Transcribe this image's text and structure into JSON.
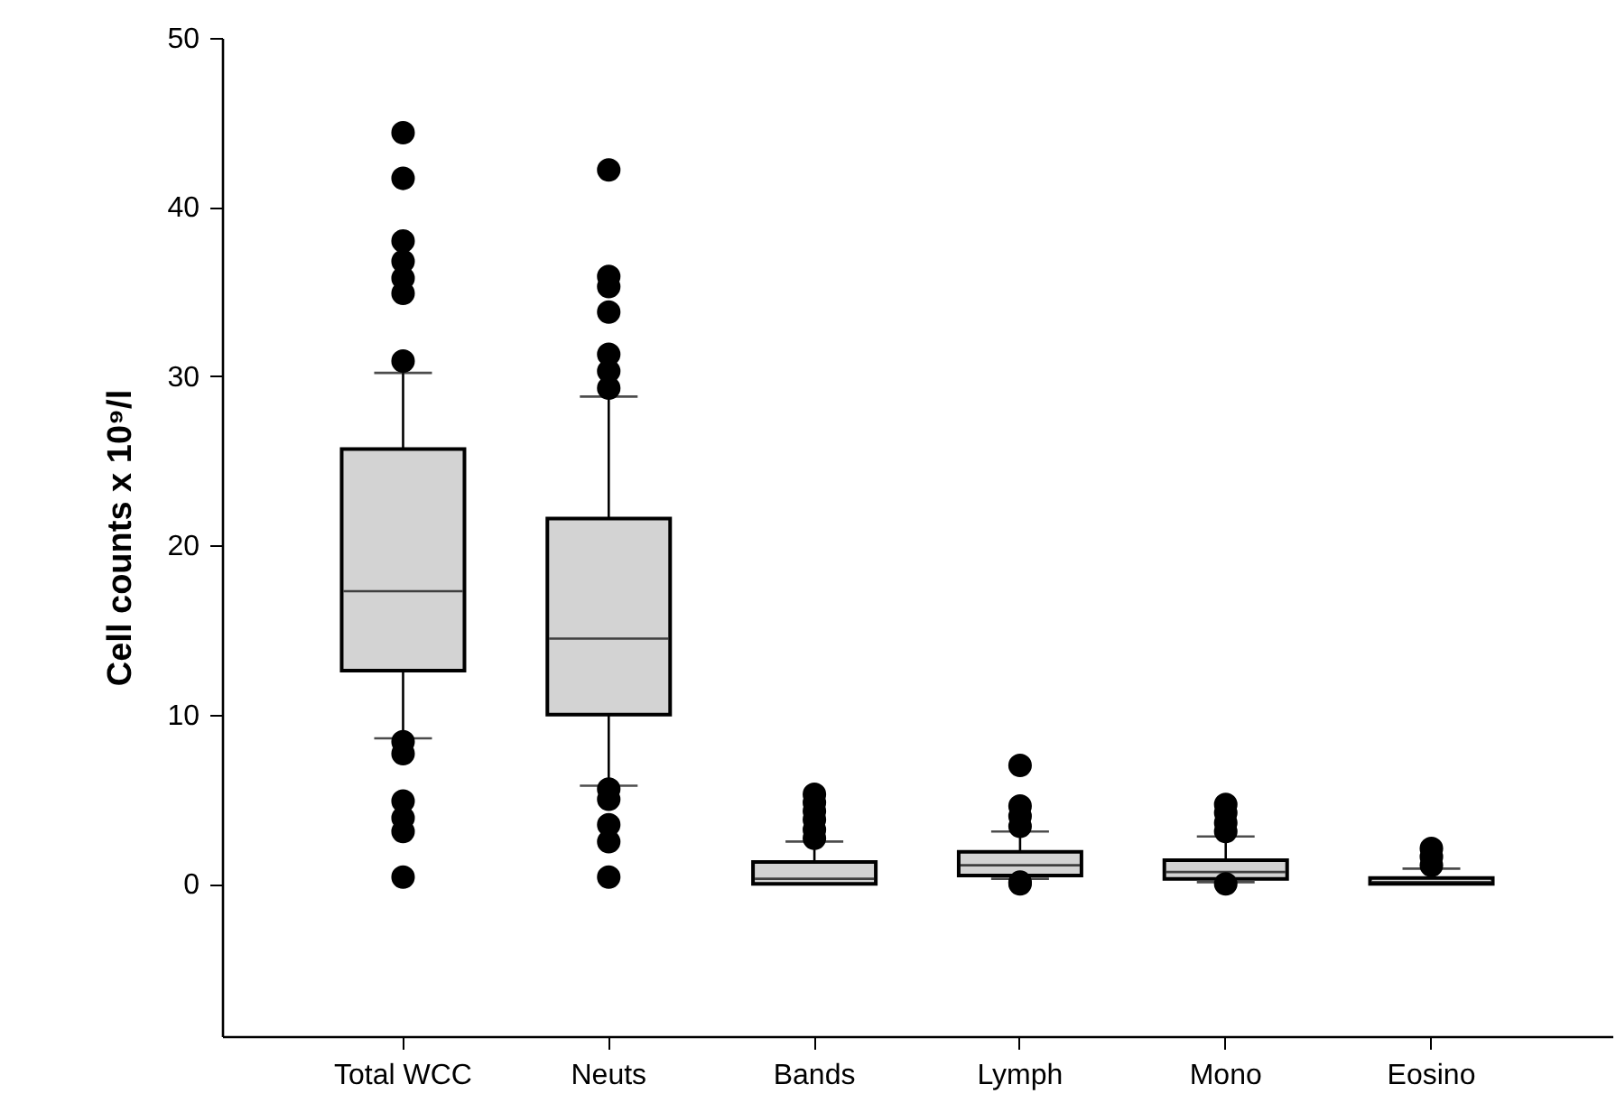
{
  "chart_data": {
    "type": "box",
    "ylabel": "Cell counts x 10⁹/l",
    "categories": [
      "Total WCC",
      "Neuts",
      "Bands",
      "Lymph",
      "Mono",
      "Eosino"
    ],
    "boxes": [
      {
        "low": 8.6,
        "q1": 12.6,
        "median": 17.3,
        "q3": 25.7,
        "high": 30.2,
        "outliers": [
          44.4,
          41.7,
          38.0,
          36.8,
          35.8,
          34.9,
          30.9,
          8.4,
          7.7,
          4.9,
          3.9,
          3.1,
          0.4
        ]
      },
      {
        "low": 5.8,
        "q1": 10.0,
        "median": 14.5,
        "q3": 21.6,
        "high": 28.8,
        "outliers": [
          42.2,
          35.9,
          35.3,
          33.8,
          31.3,
          30.3,
          29.3,
          5.6,
          5.0,
          3.5,
          2.5,
          0.4
        ]
      },
      {
        "low": 0,
        "q1": 0,
        "median": 0.3,
        "q3": 1.3,
        "high": 2.5,
        "outliers": [
          5.3,
          4.8,
          4.3,
          3.8,
          3.2,
          2.7
        ]
      },
      {
        "low": 0.3,
        "q1": 0.5,
        "median": 1.1,
        "q3": 1.9,
        "high": 3.1,
        "outliers": [
          7.0,
          4.6,
          4.0,
          3.4,
          0.1,
          0.0
        ]
      },
      {
        "low": 0.1,
        "q1": 0.3,
        "median": 0.7,
        "q3": 1.4,
        "high": 2.8,
        "outliers": [
          4.7,
          4.2,
          3.6,
          3.1,
          0.0
        ]
      },
      {
        "low": 0,
        "q1": 0,
        "median": 0.1,
        "q3": 0.35,
        "high": 0.9,
        "outliers": [
          2.1,
          1.6,
          1.1
        ]
      }
    ],
    "color": "#d3d3d3",
    "marker": "circle",
    "ylim": [
      -9,
      50
    ],
    "yticks": [
      0,
      10,
      20,
      30,
      40,
      50
    ]
  }
}
